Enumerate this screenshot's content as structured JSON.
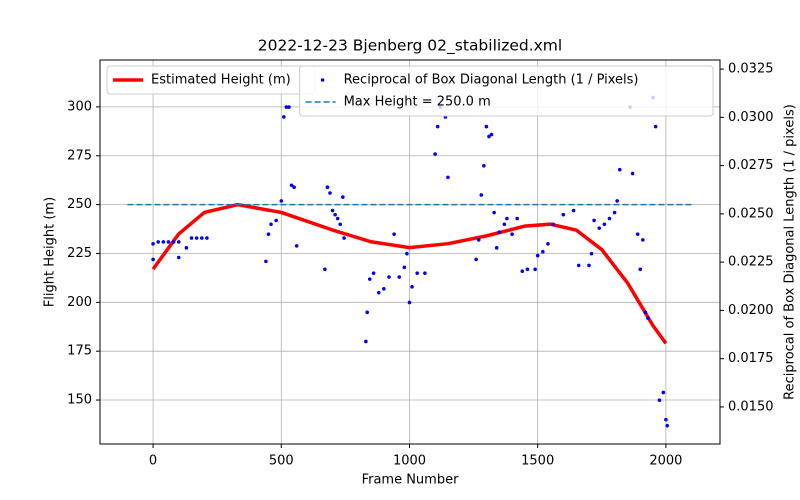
{
  "chart_data": {
    "type": "line",
    "title": "2022-12-23 Bjenberg 02_stabilized.xml",
    "x_label": "Frame Number",
    "y_label": "Flight Height (m)",
    "y2_label": "Reciprocal of Box Diagonal Length (1 / pixels)",
    "xlim": [
      -207,
      2211
    ],
    "ylim": [
      127.5,
      324
    ],
    "y2lim": [
      0.01308,
      0.03297
    ],
    "xticks": [
      0,
      500,
      1000,
      1500,
      2000
    ],
    "yticks": [
      150,
      175,
      200,
      225,
      250,
      275,
      300
    ],
    "y2ticks": [
      {
        "value": 0.015,
        "label": "0.0150"
      },
      {
        "value": 0.0175,
        "label": "0.0175"
      },
      {
        "value": 0.02,
        "label": "0.0200"
      },
      {
        "value": 0.0225,
        "label": "0.0225"
      },
      {
        "value": 0.025,
        "label": "0.0250"
      },
      {
        "value": 0.0275,
        "label": "0.0275"
      },
      {
        "value": 0.03,
        "label": "0.0300"
      },
      {
        "value": 0.0325,
        "label": "0.0325"
      }
    ],
    "grid": true,
    "series": [
      {
        "name": "Estimated Height (m)",
        "type": "line",
        "color": "#ff0000",
        "legend": "upper left",
        "x": [
          0,
          100,
          200,
          330,
          500,
          700,
          850,
          1000,
          1150,
          1300,
          1450,
          1550,
          1650,
          1750,
          1850,
          1950,
          2000
        ],
        "values": [
          217,
          235,
          246,
          250,
          246,
          237,
          231,
          228,
          230,
          234,
          239,
          240,
          237,
          227,
          210,
          188,
          179
        ]
      },
      {
        "name": "Reciprocal of Box Diagonal Length (1 / Pixels)",
        "type": "scatter",
        "color": "#0000ff",
        "axis": "y2",
        "legend": "upper right",
        "x": [
          0,
          0,
          20,
          40,
          60,
          80,
          100,
          100,
          130,
          150,
          170,
          190,
          210,
          440,
          450,
          460,
          480,
          500,
          510,
          520,
          530,
          540,
          550,
          560,
          670,
          680,
          690,
          700,
          710,
          720,
          730,
          740,
          745,
          830,
          835,
          845,
          860,
          880,
          900,
          920,
          940,
          960,
          980,
          990,
          1000,
          1010,
          1030,
          1060,
          1100,
          1110,
          1120,
          1140,
          1150,
          1260,
          1270,
          1280,
          1290,
          1300,
          1310,
          1320,
          1330,
          1340,
          1350,
          1370,
          1380,
          1400,
          1420,
          1440,
          1460,
          1490,
          1500,
          1520,
          1540,
          1560,
          1600,
          1640,
          1660,
          1700,
          1710,
          1720,
          1740,
          1760,
          1780,
          1800,
          1810,
          1820,
          1860,
          1870,
          1890,
          1900,
          1910,
          1920,
          1930,
          1950,
          1960,
          1975,
          1990,
          2000,
          2005
        ],
        "values": [
          0.02264,
          0.02345,
          0.02355,
          0.02355,
          0.02355,
          0.02355,
          0.02355,
          0.02274,
          0.02324,
          0.02375,
          0.02375,
          0.02375,
          0.02375,
          0.02254,
          0.02395,
          0.02446,
          0.02466,
          0.02567,
          0.03002,
          0.03053,
          0.03053,
          0.02648,
          0.02638,
          0.02334,
          0.02213,
          0.02638,
          0.02608,
          0.02517,
          0.02496,
          0.02476,
          0.02446,
          0.02587,
          0.02375,
          0.01839,
          0.0199,
          0.02162,
          0.02193,
          0.02092,
          0.02112,
          0.02173,
          0.02395,
          0.02173,
          0.02223,
          0.02294,
          0.02041,
          0.02122,
          0.02193,
          0.02193,
          0.0281,
          0.02952,
          0.03053,
          0.03002,
          0.02689,
          0.02264,
          0.02365,
          0.02598,
          0.02749,
          0.02952,
          0.02901,
          0.02911,
          0.02507,
          0.02324,
          0.02405,
          0.02446,
          0.02476,
          0.02395,
          0.02476,
          0.02203,
          0.02213,
          0.02213,
          0.02284,
          0.02304,
          0.02345,
          0.02446,
          0.02496,
          0.02517,
          0.02233,
          0.02233,
          0.02294,
          0.02466,
          0.02426,
          0.02446,
          0.02476,
          0.02507,
          0.02567,
          0.02729,
          0.03053,
          0.02709,
          0.02395,
          0.02213,
          0.02365,
          0.0199,
          0.0196,
          0.03103,
          0.02952,
          0.01535,
          0.01575,
          0.01434,
          0.01403
        ]
      },
      {
        "name": "Max Height = 250.0 m",
        "type": "line",
        "color": "#1f77b4",
        "linestyle": "dashed",
        "legend": "upper right",
        "x": [
          -100,
          2100
        ],
        "values": [
          250,
          250
        ]
      }
    ]
  }
}
